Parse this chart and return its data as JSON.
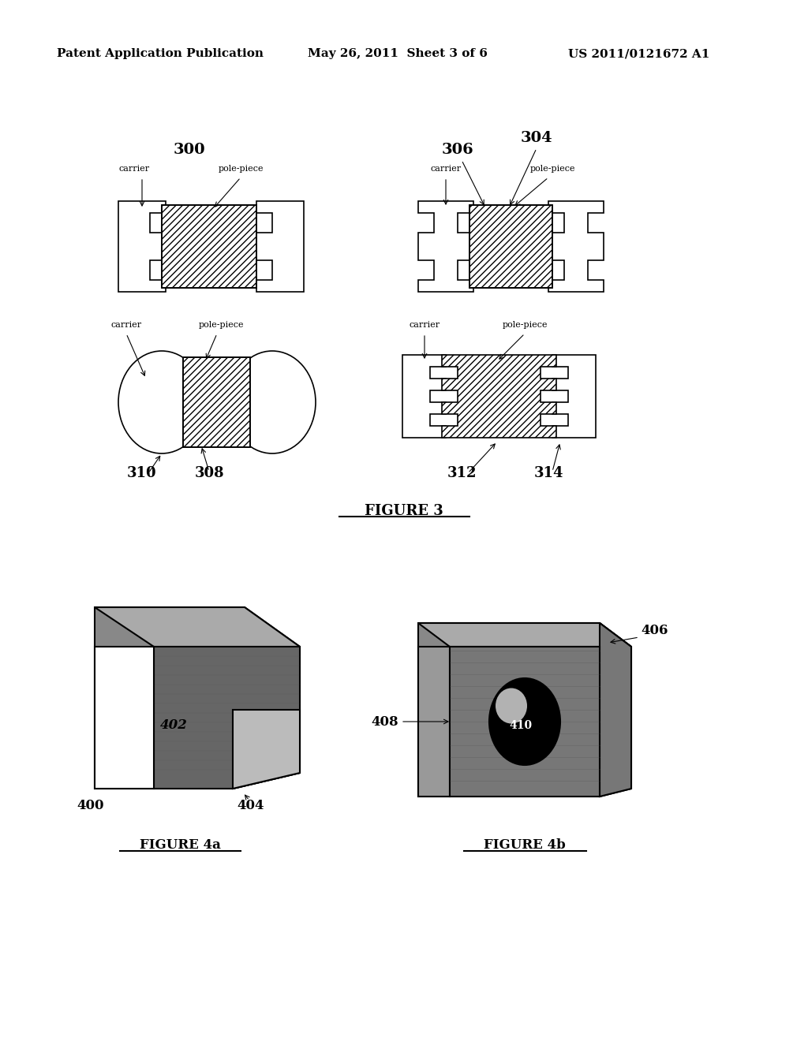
{
  "header_left": "Patent Application Publication",
  "header_mid": "May 26, 2011  Sheet 3 of 6",
  "header_right": "US 2011/0121672 A1",
  "fig3_caption": "FIGURE 3",
  "fig4a_caption": "FIGURE 4a",
  "fig4b_caption": "FIGURE 4b",
  "bg_color": "#ffffff",
  "line_color": "#000000",
  "label_300": "300",
  "label_304": "304",
  "label_306": "306",
  "label_308": "308",
  "label_310": "310",
  "label_312": "312",
  "label_314": "314",
  "label_402": "402",
  "label_404": "404",
  "label_400": "400",
  "label_406": "406",
  "label_408": "408",
  "label_410": "410"
}
